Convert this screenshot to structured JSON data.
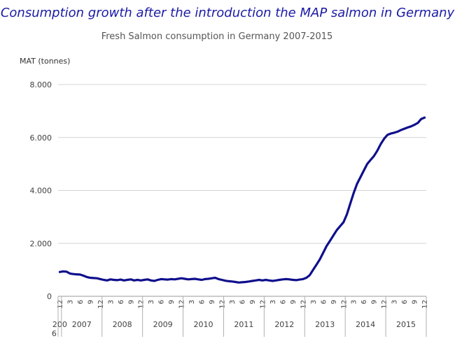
{
  "headline": "Consumption growth after the introduction the MAP salmon in Germany",
  "chart_data": {
    "type": "line",
    "title": "Fresh Salmon consumption in Germany 2007-2015",
    "ylabel": "MAT (tonnes)",
    "xlabel": "",
    "ylim": [
      0,
      8000
    ],
    "yticks": [
      0,
      2000,
      4000,
      6000,
      8000
    ],
    "ytick_labels": [
      "0",
      "2.000",
      "4.000",
      "6.000",
      "8.000"
    ],
    "grid": "horizontal",
    "month_labels": [
      "12",
      "3",
      "6",
      "9"
    ],
    "year_groups": [
      {
        "label": "200\n6",
        "start": 0,
        "months": 1
      },
      {
        "label": "2007",
        "start": 1,
        "months": 12
      },
      {
        "label": "2008",
        "start": 13,
        "months": 12
      },
      {
        "label": "2009",
        "start": 25,
        "months": 12
      },
      {
        "label": "2010",
        "start": 37,
        "months": 12
      },
      {
        "label": "2011",
        "start": 49,
        "months": 12
      },
      {
        "label": "2012",
        "start": 61,
        "months": 12
      },
      {
        "label": "2013",
        "start": 73,
        "months": 12
      },
      {
        "label": "2014",
        "start": 85,
        "months": 12
      },
      {
        "label": "2015",
        "start": 97,
        "months": 12
      }
    ],
    "series": [
      {
        "name": "",
        "color": "#0f0f8c",
        "values": [
          920,
          940,
          930,
          860,
          840,
          830,
          820,
          780,
          730,
          700,
          690,
          680,
          650,
          620,
          600,
          640,
          620,
          610,
          630,
          600,
          620,
          640,
          600,
          620,
          600,
          620,
          640,
          600,
          580,
          620,
          650,
          640,
          630,
          650,
          640,
          660,
          680,
          660,
          640,
          650,
          660,
          640,
          620,
          650,
          660,
          680,
          700,
          650,
          620,
          590,
          570,
          560,
          540,
          520,
          530,
          540,
          560,
          580,
          600,
          620,
          600,
          620,
          600,
          580,
          600,
          620,
          640,
          650,
          640,
          620,
          610,
          630,
          650,
          700,
          800,
          1000,
          1200,
          1400,
          1650,
          1900,
          2100,
          2300,
          2500,
          2650,
          2800,
          3100,
          3500,
          3900,
          4250,
          4500,
          4750,
          5000,
          5150,
          5300,
          5500,
          5750,
          5950,
          6100,
          6150,
          6180,
          6220,
          6280,
          6330,
          6380,
          6420,
          6480,
          6550,
          6700,
          6750
        ]
      }
    ]
  }
}
